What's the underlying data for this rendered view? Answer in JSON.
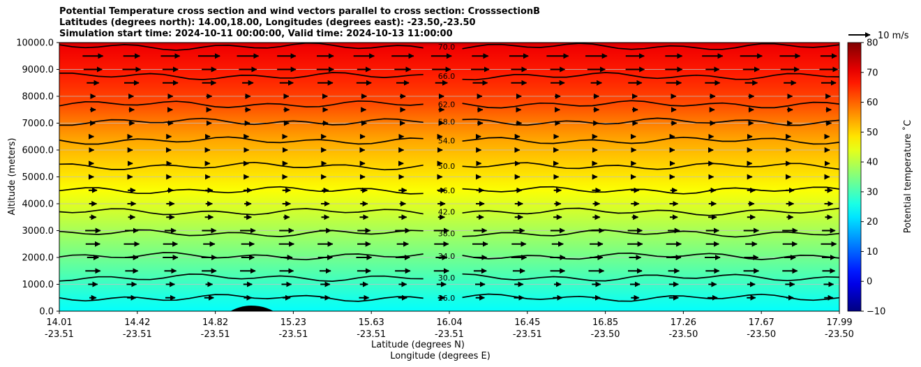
{
  "chart_data": {
    "type": "heatmap",
    "title_lines": [
      "Potential Temperature cross section and wind vectors parallel to cross section: CrosssectionB",
      "Latitudes (degrees north): 14.00,18.00, Longitudes (degrees east): -23.50,-23.50",
      "Simulation start time: 2024-10-11 00:00:00, Valid time: 2024-10-13 11:00:00"
    ],
    "xlabel": "Latitude (degrees N)",
    "xlabel2": "Longitude (degrees E)",
    "ylabel": "Altitude (meters)",
    "colorbar_label": "Potential temperature ˚C",
    "quiver_key": "10 m/s",
    "x_ticks": [
      {
        "lat": "14.01",
        "lon": "-23.51"
      },
      {
        "lat": "14.42",
        "lon": "-23.51"
      },
      {
        "lat": "14.82",
        "lon": "-23.51"
      },
      {
        "lat": "15.23",
        "lon": "-23.51"
      },
      {
        "lat": "15.63",
        "lon": "-23.51"
      },
      {
        "lat": "16.04",
        "lon": "-23.51"
      },
      {
        "lat": "16.45",
        "lon": "-23.51"
      },
      {
        "lat": "16.85",
        "lon": "-23.50"
      },
      {
        "lat": "17.26",
        "lon": "-23.50"
      },
      {
        "lat": "17.67",
        "lon": "-23.50"
      },
      {
        "lat": "17.99",
        "lon": "-23.50"
      }
    ],
    "x_range": [
      14.01,
      17.99
    ],
    "y_ticks": [
      "0.0",
      "1000.0",
      "2000.0",
      "3000.0",
      "4000.0",
      "5000.0",
      "6000.0",
      "7000.0",
      "8000.0",
      "9000.0",
      "10000.0"
    ],
    "y_range": [
      0,
      10000
    ],
    "colorbar_ticks": [
      "−10",
      "0",
      "10",
      "20",
      "30",
      "40",
      "50",
      "60",
      "70",
      "80"
    ],
    "colorbar_range": [
      -10,
      80
    ],
    "colormap": "jet",
    "contours": [
      {
        "level": 26,
        "label": "26.0",
        "altitude": 500
      },
      {
        "level": 30,
        "label": "30.0",
        "altitude": 1250
      },
      {
        "level": 34,
        "label": "34.0",
        "altitude": 2050
      },
      {
        "level": 38,
        "label": "38.0",
        "altitude": 2900
      },
      {
        "level": 42,
        "label": "42.0",
        "altitude": 3700
      },
      {
        "level": 46,
        "label": "46.0",
        "altitude": 4500
      },
      {
        "level": 50,
        "label": "50.0",
        "altitude": 5400
      },
      {
        "level": 54,
        "label": "54.0",
        "altitude": 6350
      },
      {
        "level": 58,
        "label": "58.0",
        "altitude": 7050
      },
      {
        "level": 62,
        "label": "62.0",
        "altitude": 7700
      },
      {
        "level": 66,
        "label": "66.0",
        "altitude": 8750
      },
      {
        "level": 70,
        "label": "70.0",
        "altitude": 9850
      }
    ],
    "grid": true,
    "wind": "westerly, strongest near 9000-10000 m and 2000-4000 m, weak around 5000-7000 m"
  }
}
